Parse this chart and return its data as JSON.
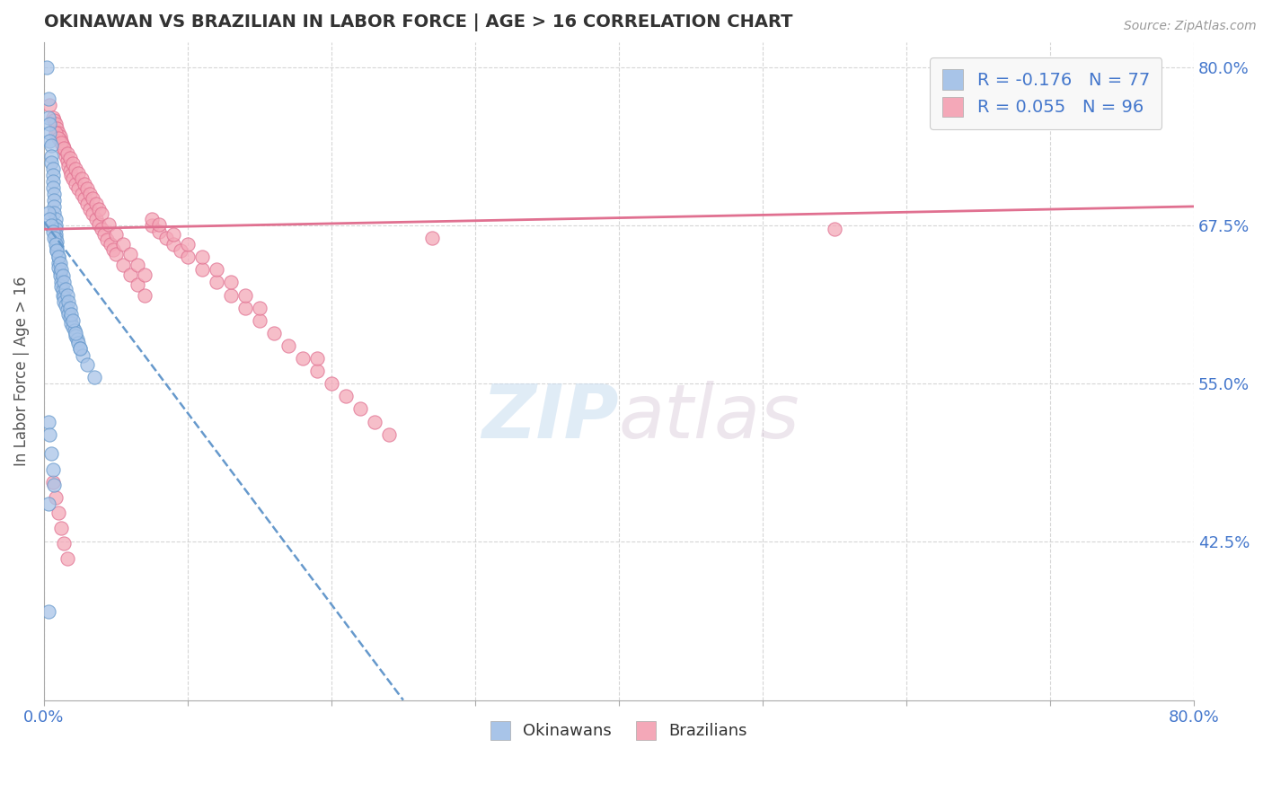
{
  "title": "OKINAWAN VS BRAZILIAN IN LABOR FORCE | AGE > 16 CORRELATION CHART",
  "source_text": "Source: ZipAtlas.com",
  "ylabel": "In Labor Force | Age > 16",
  "xlim": [
    0.0,
    0.8
  ],
  "ylim": [
    0.3,
    0.82
  ],
  "yticks": [
    0.425,
    0.55,
    0.675,
    0.8
  ],
  "ytick_labels": [
    "42.5%",
    "55.0%",
    "67.5%",
    "80.0%"
  ],
  "xticks": [
    0.0,
    0.1,
    0.2,
    0.3,
    0.4,
    0.5,
    0.6,
    0.7,
    0.8
  ],
  "xtick_labels": [
    "0.0%",
    "",
    "",
    "",
    "",
    "",
    "",
    "",
    "80.0%"
  ],
  "okinawan_color": "#a8c4e8",
  "brazilian_color": "#f4a8b8",
  "okinawan_edge_color": "#6699cc",
  "brazilian_edge_color": "#e07090",
  "trend_okinawan_color": "#6699cc",
  "trend_brazilian_color": "#e07090",
  "okinawan_R": -0.176,
  "okinawan_N": 77,
  "brazilian_R": 0.055,
  "brazilian_N": 96,
  "legend_label_okinawan": "Okinawans",
  "legend_label_brazilian": "Brazilians",
  "watermark_zip": "ZIP",
  "watermark_atlas": "atlas",
  "background_color": "#ffffff",
  "grid_color": "#cccccc",
  "axis_label_color": "#4477cc",
  "title_color": "#333333",
  "okinawan_scatter": {
    "x": [
      0.002,
      0.003,
      0.003,
      0.004,
      0.004,
      0.004,
      0.005,
      0.005,
      0.005,
      0.006,
      0.006,
      0.006,
      0.006,
      0.007,
      0.007,
      0.007,
      0.007,
      0.008,
      0.008,
      0.008,
      0.008,
      0.008,
      0.009,
      0.009,
      0.009,
      0.01,
      0.01,
      0.01,
      0.011,
      0.011,
      0.012,
      0.012,
      0.013,
      0.013,
      0.014,
      0.014,
      0.015,
      0.016,
      0.017,
      0.018,
      0.019,
      0.02,
      0.021,
      0.022,
      0.023,
      0.024,
      0.025,
      0.027,
      0.03,
      0.035,
      0.003,
      0.004,
      0.005,
      0.006,
      0.007,
      0.008,
      0.009,
      0.01,
      0.011,
      0.012,
      0.013,
      0.014,
      0.015,
      0.016,
      0.017,
      0.018,
      0.019,
      0.02,
      0.022,
      0.025,
      0.003,
      0.004,
      0.005,
      0.006,
      0.007,
      0.003,
      0.003
    ],
    "y": [
      0.8,
      0.775,
      0.76,
      0.755,
      0.748,
      0.742,
      0.738,
      0.73,
      0.725,
      0.72,
      0.715,
      0.71,
      0.705,
      0.7,
      0.695,
      0.69,
      0.685,
      0.68,
      0.675,
      0.672,
      0.668,
      0.665,
      0.662,
      0.658,
      0.655,
      0.65,
      0.645,
      0.642,
      0.638,
      0.635,
      0.63,
      0.627,
      0.624,
      0.62,
      0.618,
      0.615,
      0.612,
      0.608,
      0.605,
      0.602,
      0.598,
      0.595,
      0.592,
      0.588,
      0.585,
      0.582,
      0.578,
      0.572,
      0.565,
      0.555,
      0.685,
      0.68,
      0.675,
      0.67,
      0.665,
      0.66,
      0.655,
      0.65,
      0.645,
      0.64,
      0.635,
      0.63,
      0.625,
      0.62,
      0.615,
      0.61,
      0.605,
      0.6,
      0.59,
      0.578,
      0.52,
      0.51,
      0.495,
      0.482,
      0.47,
      0.455,
      0.37
    ]
  },
  "brazilian_scatter": {
    "x": [
      0.004,
      0.006,
      0.007,
      0.008,
      0.009,
      0.01,
      0.011,
      0.012,
      0.013,
      0.014,
      0.015,
      0.016,
      0.017,
      0.018,
      0.019,
      0.02,
      0.022,
      0.024,
      0.026,
      0.028,
      0.03,
      0.032,
      0.034,
      0.036,
      0.038,
      0.04,
      0.042,
      0.044,
      0.046,
      0.048,
      0.05,
      0.055,
      0.06,
      0.065,
      0.07,
      0.075,
      0.08,
      0.085,
      0.09,
      0.095,
      0.1,
      0.11,
      0.12,
      0.13,
      0.14,
      0.15,
      0.16,
      0.17,
      0.18,
      0.19,
      0.2,
      0.21,
      0.22,
      0.23,
      0.24,
      0.008,
      0.01,
      0.012,
      0.014,
      0.016,
      0.018,
      0.02,
      0.022,
      0.024,
      0.026,
      0.028,
      0.03,
      0.032,
      0.034,
      0.036,
      0.038,
      0.04,
      0.045,
      0.05,
      0.055,
      0.06,
      0.065,
      0.07,
      0.075,
      0.08,
      0.09,
      0.1,
      0.11,
      0.12,
      0.13,
      0.14,
      0.15,
      0.19,
      0.27,
      0.55,
      0.006,
      0.008,
      0.01,
      0.012,
      0.014,
      0.016
    ],
    "y": [
      0.77,
      0.76,
      0.758,
      0.755,
      0.752,
      0.748,
      0.745,
      0.742,
      0.738,
      0.735,
      0.73,
      0.726,
      0.722,
      0.718,
      0.715,
      0.712,
      0.708,
      0.704,
      0.7,
      0.696,
      0.692,
      0.688,
      0.684,
      0.68,
      0.676,
      0.672,
      0.668,
      0.664,
      0.66,
      0.656,
      0.652,
      0.644,
      0.636,
      0.628,
      0.62,
      0.675,
      0.67,
      0.665,
      0.66,
      0.655,
      0.65,
      0.64,
      0.63,
      0.62,
      0.61,
      0.6,
      0.59,
      0.58,
      0.57,
      0.56,
      0.55,
      0.54,
      0.53,
      0.52,
      0.51,
      0.748,
      0.744,
      0.74,
      0.736,
      0.732,
      0.728,
      0.724,
      0.72,
      0.716,
      0.712,
      0.708,
      0.704,
      0.7,
      0.696,
      0.692,
      0.688,
      0.684,
      0.676,
      0.668,
      0.66,
      0.652,
      0.644,
      0.636,
      0.68,
      0.676,
      0.668,
      0.66,
      0.65,
      0.64,
      0.63,
      0.62,
      0.61,
      0.57,
      0.665,
      0.672,
      0.472,
      0.46,
      0.448,
      0.436,
      0.424,
      0.412
    ]
  },
  "br_trend_x0": 0.0,
  "br_trend_y0": 0.672,
  "br_trend_x1": 0.8,
  "br_trend_y1": 0.69,
  "ok_trend_x0": 0.0,
  "ok_trend_y0": 0.678,
  "ok_trend_x1": 0.25,
  "ok_trend_y1": 0.3
}
